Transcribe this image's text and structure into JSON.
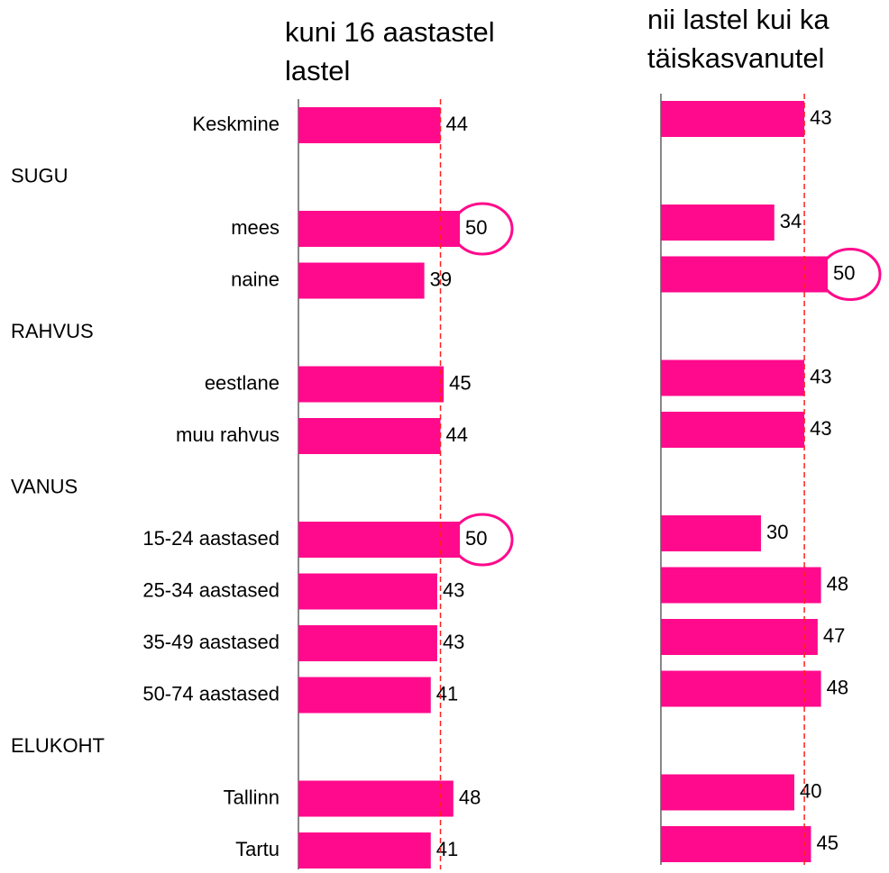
{
  "chart_data": {
    "type": "bar",
    "orientation": "horizontal",
    "categories": [
      "Keskmine",
      "SUGU",
      "mees",
      "naine",
      "RAHVUS",
      "eestlane",
      "muu rahvus",
      "VANUS",
      "15-24 aastased",
      "25-34 aastased",
      "35-49 aastased",
      "50-74 aastased",
      "ELUKOHT",
      "Tallinn",
      "Tartu"
    ],
    "series": [
      {
        "name": "kuni 16 aastastel lastel",
        "color": "#ff0a8c",
        "values": [
          44,
          null,
          50,
          39,
          null,
          45,
          44,
          null,
          50,
          43,
          43,
          41,
          null,
          48,
          41
        ],
        "highlighted": [
          2,
          8
        ]
      },
      {
        "name": "nii lastel kui ka täiskasvanutel",
        "color": "#ff0a8c",
        "values": [
          43,
          null,
          34,
          50,
          null,
          43,
          43,
          null,
          30,
          48,
          47,
          48,
          null,
          40,
          45
        ],
        "highlighted": [
          3
        ]
      }
    ],
    "reference_line_color": "#ff2020"
  }
}
